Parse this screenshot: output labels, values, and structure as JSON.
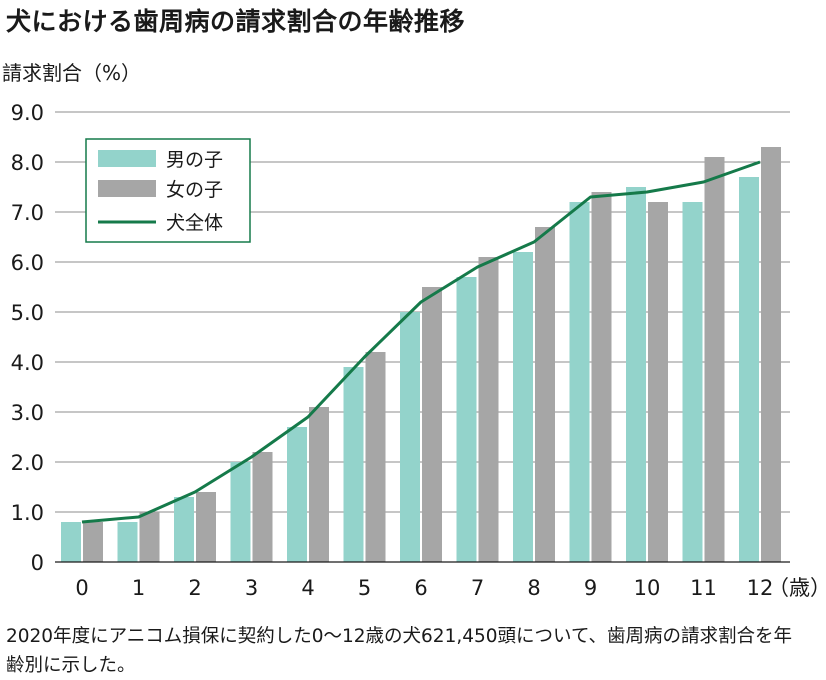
{
  "chart_data": {
    "type": "bar",
    "title": "犬における歯周病の請求割合の年齢推移",
    "ylabel": "請求割合（%）",
    "xlabel_unit": "（歳）",
    "categories": [
      "0",
      "1",
      "2",
      "3",
      "4",
      "5",
      "6",
      "7",
      "8",
      "9",
      "10",
      "11",
      "12"
    ],
    "ylim": [
      0,
      9
    ],
    "yticks": [
      "0",
      "1.0",
      "2.0",
      "3.0",
      "4.0",
      "5.0",
      "6.0",
      "7.0",
      "8.0",
      "9.0"
    ],
    "grid": true,
    "legend_position": "top-left",
    "series": [
      {
        "name": "男の子",
        "kind": "bar",
        "color": "#93d3cb",
        "values": [
          0.8,
          0.8,
          1.3,
          2.0,
          2.7,
          3.9,
          5.0,
          5.7,
          6.2,
          7.2,
          7.5,
          7.2,
          7.7
        ]
      },
      {
        "name": "女の子",
        "kind": "bar",
        "color": "#a6a6a6",
        "values": [
          0.8,
          1.0,
          1.4,
          2.2,
          3.1,
          4.2,
          5.5,
          6.1,
          6.7,
          7.4,
          7.2,
          8.1,
          8.3
        ]
      },
      {
        "name": "犬全体",
        "kind": "line",
        "color": "#157a4a",
        "values": [
          0.8,
          0.9,
          1.4,
          2.1,
          2.9,
          4.1,
          5.2,
          5.9,
          6.4,
          7.3,
          7.4,
          7.6,
          8.0
        ]
      }
    ]
  },
  "caption": "2020年度にアニコム損保に契約した0〜12歳の犬621,450頭について、歯周病の請求割合を年齢別に示した。"
}
